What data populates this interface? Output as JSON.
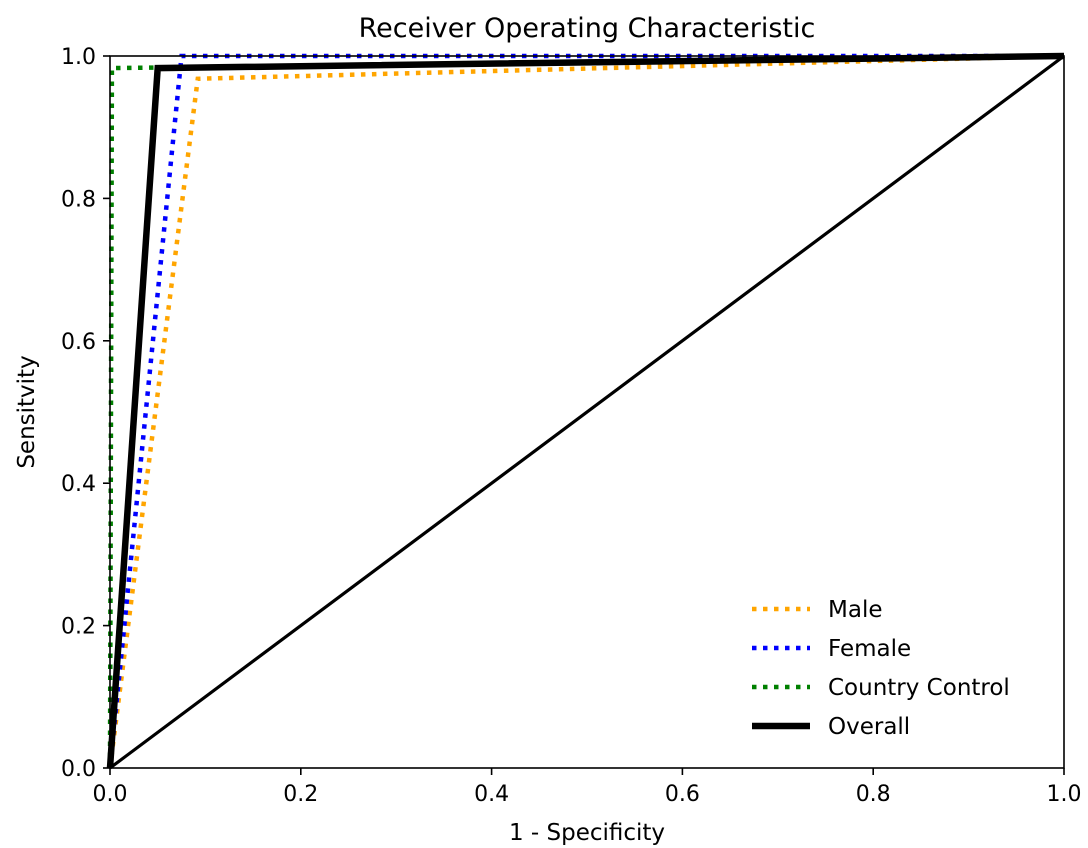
{
  "chart_data": {
    "type": "line",
    "title": "Receiver Operating Characteristic",
    "xlabel": "1 - Specificity",
    "ylabel": "Sensitvity",
    "xlim": [
      0,
      1
    ],
    "ylim": [
      0,
      1
    ],
    "xticks": [
      "0.0",
      "0.2",
      "0.4",
      "0.6",
      "0.8",
      "1.0"
    ],
    "yticks": [
      "0.0",
      "0.2",
      "0.4",
      "0.6",
      "0.8",
      "1.0"
    ],
    "grid": false,
    "legend_position": "lower-right",
    "series": [
      {
        "name": "Male",
        "color": "#FFA500",
        "style": "dotted",
        "x": [
          0,
          0.092,
          1
        ],
        "y": [
          0,
          0.968,
          1
        ]
      },
      {
        "name": "Female",
        "color": "#0000FF",
        "style": "dotted",
        "x": [
          0,
          0.075,
          1
        ],
        "y": [
          0,
          1.0,
          1
        ]
      },
      {
        "name": "Country Control",
        "color": "#008000",
        "style": "dotted",
        "x": [
          0,
          0.002,
          1
        ],
        "y": [
          0,
          0.983,
          1
        ]
      },
      {
        "name": "Overall",
        "color": "#000000",
        "style": "solid-thick",
        "x": [
          0,
          0.05,
          1
        ],
        "y": [
          0,
          0.983,
          1
        ]
      }
    ],
    "reference_line": {
      "color": "#000000",
      "x": [
        0,
        1
      ],
      "y": [
        0,
        1
      ]
    }
  }
}
